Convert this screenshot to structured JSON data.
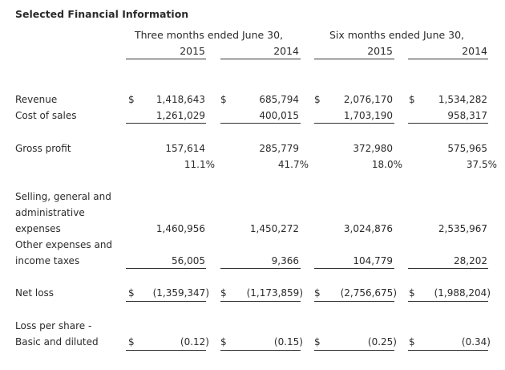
{
  "title": "Selected Financial Information",
  "headers": {
    "three_months": "Three months ended June 30,",
    "six_months": "Six months ended June 30,",
    "years": [
      "2015",
      "2014",
      "2015",
      "2014"
    ]
  },
  "currency_symbol": "$",
  "rows": {
    "revenue": {
      "label": "Revenue",
      "values": [
        "1,418,643",
        "685,794",
        "2,076,170",
        "1,534,282"
      ]
    },
    "cost_of_sales": {
      "label": "Cost of sales",
      "values": [
        "1,261,029",
        "400,015",
        "1,703,190",
        "958,317"
      ]
    },
    "gross_profit": {
      "label": "Gross profit",
      "values": [
        "157,614",
        "285,779",
        "372,980",
        "575,965"
      ]
    },
    "gross_margin": {
      "values": [
        "11.1%",
        "41.7%",
        "18.0%",
        "37.5%"
      ]
    },
    "sga": {
      "label_lines": [
        "Selling, general and",
        "administrative",
        "expenses"
      ],
      "values": [
        "1,460,956",
        "1,450,272",
        "3,024,876",
        "2,535,967"
      ]
    },
    "other": {
      "label_lines": [
        "Other expenses and",
        "income taxes"
      ],
      "values": [
        "56,005",
        "9,366",
        "104,779",
        "28,202"
      ]
    },
    "net_loss": {
      "label": "Net loss",
      "values": [
        "(1,359,347)",
        "(1,173,859)",
        "(2,756,675)",
        "(1,988,204)"
      ]
    },
    "lps": {
      "label_lines": [
        "Loss per share -",
        "Basic and diluted"
      ],
      "values": [
        "(0.12)",
        "(0.15)",
        "(0.25)",
        "(0.34)"
      ]
    }
  }
}
